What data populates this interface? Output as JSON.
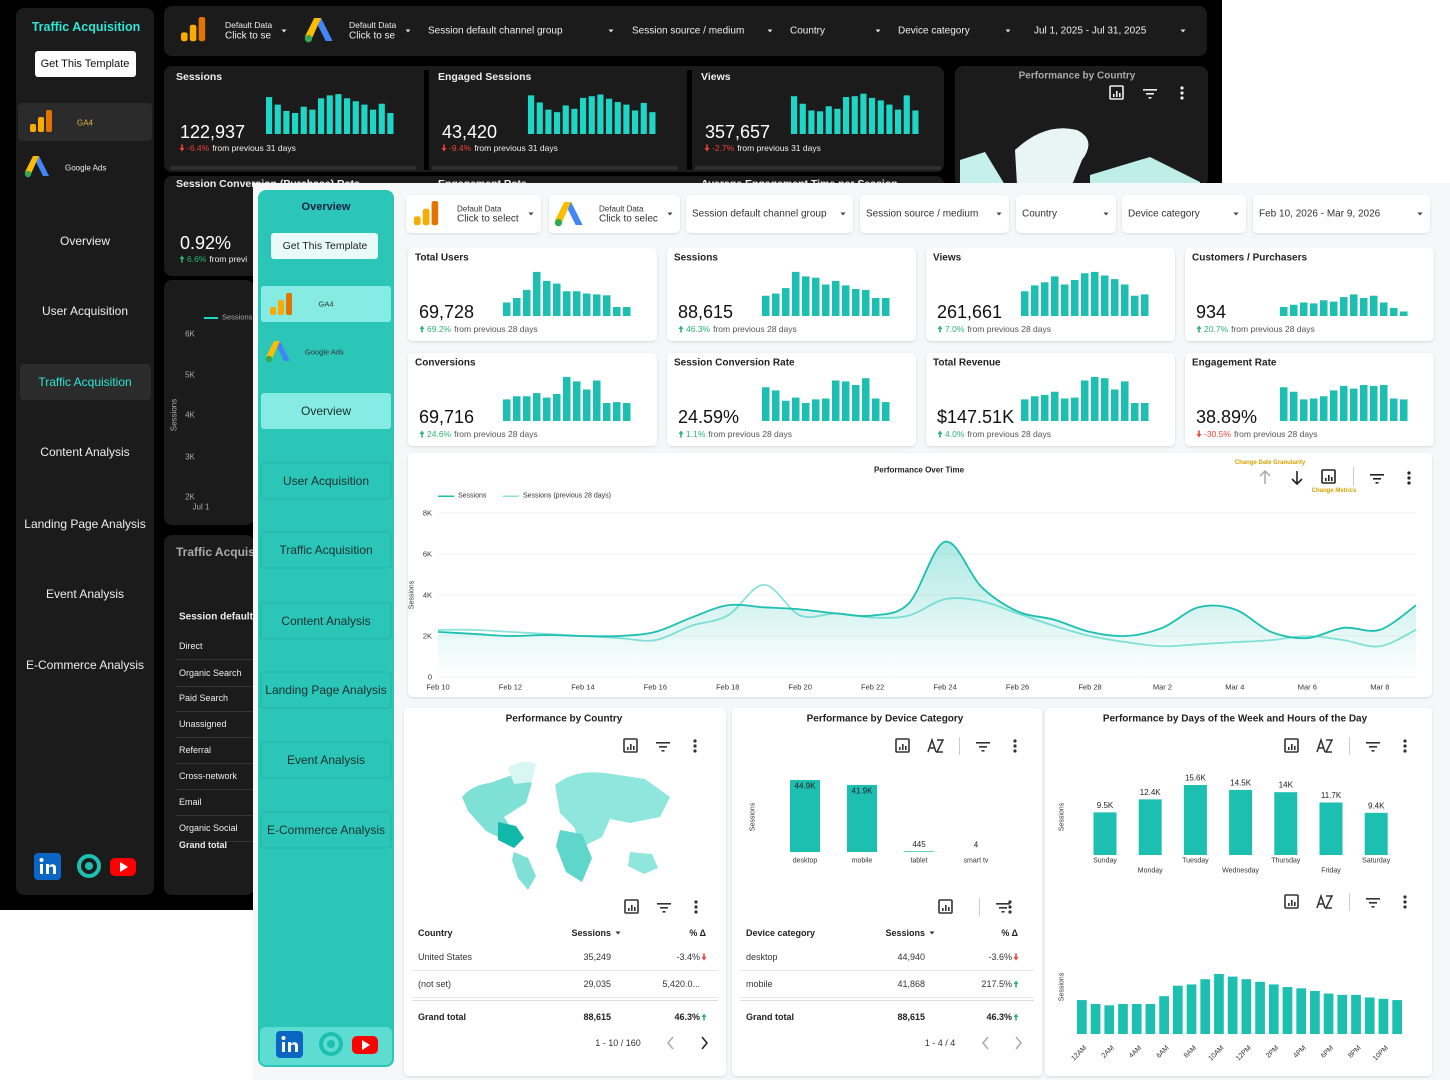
{
  "back": {
    "brand": "Traffic Acquisition",
    "button": "Get This Template",
    "sources": [
      "GA4",
      "Google Ads"
    ],
    "nav": [
      "Overview",
      "User Acquisition",
      "Traffic Acquisition",
      "Content Analysis",
      "Landing Page Analysis",
      "Event Analysis",
      "E-Commerce Analysis"
    ],
    "active_nav": 2,
    "picker": [
      {
        "title": "Default Data",
        "sub": "Click to se"
      },
      {
        "title": "Default Data",
        "sub": "Click to se"
      }
    ],
    "filters": [
      "Session default channel group",
      "Session source / medium",
      "Country",
      "Device category",
      "Jul 1, 2025 - Jul 31, 2025"
    ],
    "cards": [
      {
        "title": "Sessions",
        "value": "122,937",
        "delta": "-6.4%",
        "note": "from previous 31 days",
        "bars": [
          88,
          70,
          55,
          50,
          65,
          58,
          85,
          92,
          95,
          85,
          78,
          70,
          58,
          72,
          50
        ]
      },
      {
        "title": "Engaged Sessions",
        "value": "43,420",
        "delta": "-9.4%",
        "note": "from previous 31 days",
        "bars": [
          92,
          75,
          58,
          52,
          68,
          60,
          86,
          90,
          94,
          84,
          76,
          70,
          56,
          74,
          52
        ]
      },
      {
        "title": "Views",
        "value": "357,657",
        "delta": "-2.7%",
        "note": "from previous 31 days",
        "bars": [
          90,
          72,
          56,
          54,
          66,
          60,
          88,
          90,
          96,
          86,
          80,
          70,
          58,
          92,
          56
        ]
      }
    ],
    "row2": [
      "Session Conversion (Purchase) Rate",
      "Engagement Rate",
      "Average Engagement Time per Session"
    ],
    "rate": {
      "value": "0.92%",
      "delta": "6.6%",
      "note": "from previ"
    },
    "trend": {
      "legend": "Sessions",
      "axis_label": "Sessions",
      "yticks": [
        "6K",
        "5K",
        "4K",
        "3K",
        "2K"
      ],
      "x": "Jul 1"
    },
    "country_title": "Performance by Country",
    "table": {
      "title": "Traffic Acquisition",
      "header": "Session default channel group",
      "rows": [
        "Direct",
        "Organic Search",
        "Paid Search",
        "Unassigned",
        "Referral",
        "Cross-network",
        "Email",
        "Organic Social"
      ],
      "total": "Grand total"
    }
  },
  "front": {
    "sidebar_title": "Overview",
    "button": "Get This Template",
    "sources": [
      "GA4",
      "Google Ads"
    ],
    "nav": [
      "Overview",
      "User Acquisition",
      "Traffic Acquisition",
      "Content Analysis",
      "Landing Page Analysis",
      "Event Analysis",
      "E-Commerce Analysis"
    ],
    "active_nav": 0,
    "picker": [
      {
        "title": "Default Data",
        "sub": "Click to select"
      },
      {
        "title": "Default Data",
        "sub": "Click to selec"
      }
    ],
    "filters": [
      "Session default channel group",
      "Session source / medium",
      "Country",
      "Device category",
      "Feb 10, 2026 - Mar 9, 2026"
    ],
    "cards": [
      {
        "title": "Total Users",
        "value": "69,728",
        "delta": "69.2%",
        "note": "from previous 28 days",
        "bars": [
          30,
          40,
          58,
          98,
          78,
          72,
          55,
          55,
          50,
          48,
          46,
          20,
          20
        ]
      },
      {
        "title": "Sessions",
        "value": "88,615",
        "delta": "46.3%",
        "note": "from previous 28 days",
        "bars": [
          45,
          50,
          62,
          98,
          88,
          85,
          70,
          78,
          68,
          60,
          58,
          40,
          40
        ]
      },
      {
        "title": "Views",
        "value": "261,661",
        "delta": "7.0%",
        "note": "from previous 28 days",
        "bars": [
          55,
          68,
          75,
          88,
          70,
          80,
          95,
          98,
          90,
          82,
          70,
          45,
          48
        ]
      },
      {
        "title": "Customers / Purchasers",
        "value": "934",
        "delta": "20.7%",
        "note": "from previous 28 days",
        "bars": [
          20,
          25,
          30,
          28,
          35,
          32,
          42,
          48,
          40,
          45,
          30,
          18,
          10
        ]
      },
      {
        "title": "Conversions",
        "value": "69,716",
        "delta": "24.6%",
        "note": "from previous 28 days",
        "bars": [
          48,
          55,
          55,
          62,
          52,
          60,
          98,
          88,
          70,
          90,
          40,
          42,
          40
        ]
      },
      {
        "title": "Session Conversion Rate",
        "value": "24.59%",
        "delta": "1.1%",
        "note": "from previous 28 days",
        "bars": [
          75,
          68,
          45,
          52,
          40,
          48,
          50,
          90,
          88,
          80,
          95,
          50,
          42
        ]
      },
      {
        "title": "Total Revenue",
        "value": "$147.51K",
        "delta": "4.0%",
        "note": "from previous 28 days",
        "bars": [
          48,
          55,
          58,
          65,
          50,
          52,
          90,
          98,
          95,
          70,
          88,
          40,
          40
        ]
      },
      {
        "title": "Engagement Rate",
        "value": "38.89%",
        "delta": "-30.5%",
        "note": "from previous 28 days",
        "bars": [
          75,
          65,
          48,
          50,
          55,
          68,
          78,
          72,
          80,
          78,
          80,
          50,
          48
        ]
      }
    ],
    "over_time": {
      "type": "line",
      "title": "Performance Over Time",
      "axis_label": "Sessions",
      "annotations": [
        "Change Date Granularity",
        "Change Metrics"
      ],
      "categories": [
        "Feb 10",
        null,
        "Feb 12",
        null,
        "Feb 14",
        null,
        "Feb 16",
        null,
        "Feb 18",
        null,
        "Feb 20",
        null,
        "Feb 22",
        null,
        "Feb 24",
        null,
        "Feb 26",
        null,
        "Feb 28",
        null,
        "Mar 2",
        null,
        "Mar 4",
        null,
        "Mar 6",
        null,
        "Mar 8",
        null
      ],
      "series": [
        {
          "name": "Sessions",
          "color": "#1cbfb0",
          "values": [
            2200,
            2100,
            2000,
            2050,
            2000,
            2000,
            2200,
            2900,
            3500,
            3400,
            3300,
            3100,
            3000,
            3600,
            6600,
            4400,
            3200,
            2800,
            2200,
            2000,
            2400,
            3400,
            3300,
            2200,
            1900,
            2400,
            2300,
            3500
          ]
        },
        {
          "name": "Sessions (previous 28 days)",
          "color": "#8ce3da",
          "values": [
            2300,
            2300,
            2200,
            2100,
            2000,
            1900,
            1800,
            2500,
            3000,
            4500,
            3000,
            3100,
            2900,
            3000,
            3800,
            3700,
            3100,
            2500,
            2000,
            1700,
            1500,
            1600,
            1700,
            1800,
            2000,
            1800,
            1500,
            2300
          ]
        }
      ],
      "ylim": [
        0,
        8000
      ],
      "yticks": [
        0,
        {
          "value": 2000,
          "label": "2K"
        },
        {
          "value": 4000,
          "label": "4K"
        },
        {
          "value": 6000,
          "label": "6K"
        },
        {
          "value": 8000,
          "label": "8K"
        }
      ]
    },
    "country": {
      "title": "Performance by Country",
      "headers": [
        "Country",
        "Sessions",
        "% Δ"
      ],
      "rows": [
        [
          "United States",
          "35,249",
          "-3.4%"
        ],
        [
          "(not set)",
          "29,035",
          "5,420.0..."
        ]
      ],
      "total": [
        "Grand total",
        "88,615",
        "46.3%"
      ],
      "pager": "1 - 10 / 160"
    },
    "device": {
      "type": "bar",
      "title": "Performance by Device Category",
      "axis_label": "Sessions",
      "categories": [
        "desktop",
        "mobile",
        "tablet",
        "smart tv"
      ],
      "values": [
        44940,
        41868,
        445,
        4
      ],
      "value_labels": [
        "44.9K",
        "41.9K",
        "445",
        "4"
      ],
      "color": "#1cbfb0",
      "headers": [
        "Device category",
        "Sessions",
        "% Δ"
      ],
      "rows": [
        [
          "desktop",
          "44,940",
          "-3.6%"
        ],
        [
          "mobile",
          "41,868",
          "217.5%"
        ]
      ],
      "total": [
        "Grand total",
        "88,615",
        "46.3%"
      ],
      "pager": "1 - 4 / 4"
    },
    "days": {
      "type": "bar",
      "title": "Performance by Days of the Week and Hours of the Day",
      "axis_label": "Sessions",
      "categories": [
        "Sunday",
        "Monday",
        "Tuesday",
        "Wednesday",
        "Thursday",
        "Friday",
        "Saturday"
      ],
      "values": [
        9500,
        12400,
        15600,
        14500,
        14000,
        11700,
        9400
      ],
      "value_labels": [
        "9.5K",
        "12.4K",
        "15.6K",
        "14.5K",
        "14K",
        "11.7K",
        "9.4K"
      ],
      "color": "#1cbfb0"
    },
    "hours": {
      "type": "bar",
      "axis_label": "Sessions",
      "categories": [
        "12AM",
        null,
        "2AM",
        null,
        "4AM",
        null,
        "6AM",
        null,
        "8AM",
        null,
        "10AM",
        null,
        "12PM",
        null,
        "2PM",
        null,
        "4PM",
        null,
        "6PM",
        null,
        "8PM",
        null,
        "10PM",
        null
      ],
      "values": [
        2600,
        2300,
        2200,
        2300,
        2300,
        2300,
        2900,
        3700,
        3800,
        4200,
        4600,
        4400,
        4200,
        4000,
        3800,
        3600,
        3500,
        3300,
        3100,
        3000,
        3000,
        2800,
        2700,
        2600
      ],
      "color": "#1cbfb0"
    }
  }
}
